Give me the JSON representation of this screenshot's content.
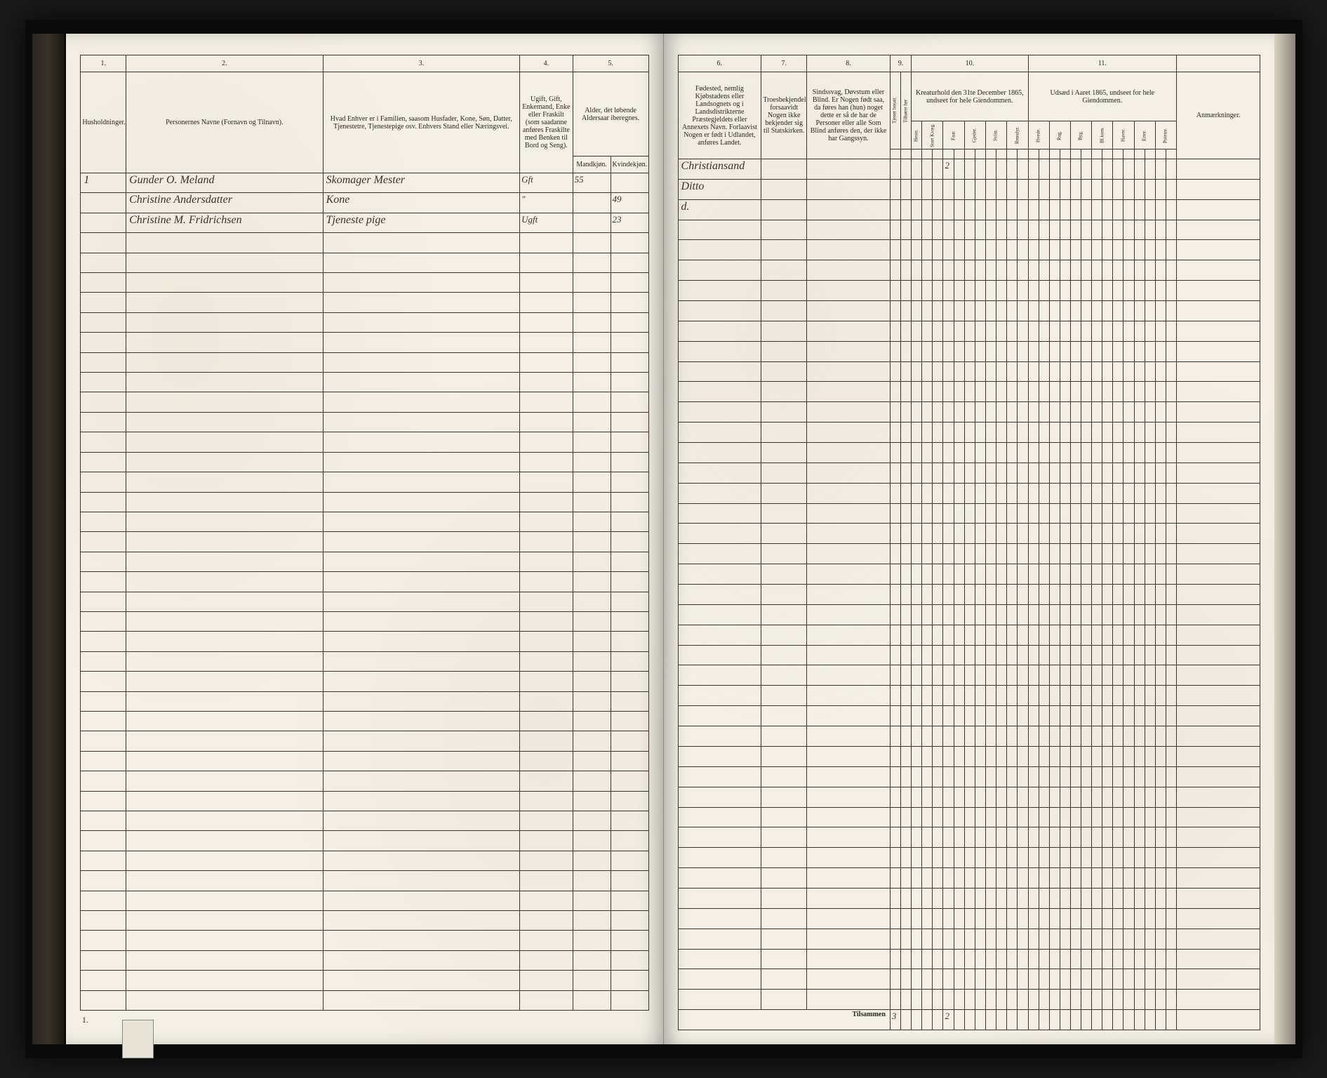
{
  "document": {
    "type": "census-ledger",
    "year_reference": "1865",
    "total_rows": 42
  },
  "left_page": {
    "columns": {
      "c1": {
        "num": "1.",
        "header": "Husholdninger."
      },
      "c2": {
        "num": "2.",
        "header": "Personernes Navne (Fornavn og Tilnavn)."
      },
      "c3": {
        "num": "3.",
        "header": "Hvad Enhver er i Familien, saasom Husfader, Kone, Søn, Datter, Tjenestetre, Tjenestepige osv. Enhvers Stand eller Næringsvei."
      },
      "c4": {
        "num": "4.",
        "header": "Ugift, Gift, Enkemand, Enke eller Fraskilt (som saadanne anføres Fraskilte med Benken til Bord og Seng)."
      },
      "c5": {
        "num": "5.",
        "header": "Alder, det løbende Aldersaar iberegnes.",
        "sub_m": "Mandkjøn.",
        "sub_k": "Kvindekjøn."
      }
    },
    "rows": [
      {
        "hh": "1",
        "name": "Gunder O. Meland",
        "role": "Skomager Mester",
        "status": "Gft",
        "age_m": "55",
        "age_k": ""
      },
      {
        "hh": "",
        "name": "Christine Andersdatter",
        "role": "Kone",
        "status": "\"",
        "age_m": "",
        "age_k": "49"
      },
      {
        "hh": "",
        "name": "Christine M. Fridrichsen",
        "role": "Tjeneste pige",
        "status": "Ugft",
        "age_m": "",
        "age_k": "23"
      }
    ],
    "footer_mark": "1."
  },
  "right_page": {
    "columns": {
      "c6": {
        "num": "6.",
        "header": "Fødested, nemlig Kjøbstadens eller Landsognets og i Landsdistrikterne Præstegjeldets eller Annexets Navn. Forlaavist Nogen er født i Udlandet, anføres Landet."
      },
      "c7": {
        "num": "7.",
        "header": "Troesbekjendelse, forsaavidt Nogen ikke bekjender sig til Statskirken."
      },
      "c8": {
        "num": "8.",
        "header": "Sindssvag, Døvstum eller Blind. Er Nogen født saa, da føres han (hun) noget dette er så de har de Personer eller alle Som Blind anføres den, der ikke har Gangssyn."
      },
      "c9": {
        "num": "9.",
        "sub_a": "Tjener bosatt",
        "sub_b": "Tilhører her"
      },
      "c10": {
        "num": "10.",
        "header": "Kreaturhold den 31te December 1865, undseet for hele Giendommen.",
        "subs": [
          "Heste.",
          "Stort Kvæg.",
          "Faar.",
          "Gjeder.",
          "Sviin.",
          "Rensdyr."
        ]
      },
      "c11": {
        "num": "11.",
        "header": "Udsæd i Aaret 1865, undseet for hele Giendommen.",
        "subs": [
          "Hvede.",
          "Rug.",
          "Byg.",
          "Bl.korn.",
          "Havre.",
          "Erter.",
          "Poteter."
        ]
      },
      "c12": {
        "header": "Anmærkninger."
      }
    },
    "rows": [
      {
        "birthplace": "Christiansand",
        "c9a": "",
        "c10_2": "2"
      },
      {
        "birthplace": "Ditto"
      },
      {
        "birthplace": "d."
      }
    ],
    "footer": {
      "label": "Tilsammen",
      "c9a": "3",
      "c10_2": "2"
    }
  },
  "style": {
    "page_bg": "#f4f0e6",
    "ink": "#2a2620",
    "rule": "#3a362e",
    "script_color": "#3a3228"
  }
}
